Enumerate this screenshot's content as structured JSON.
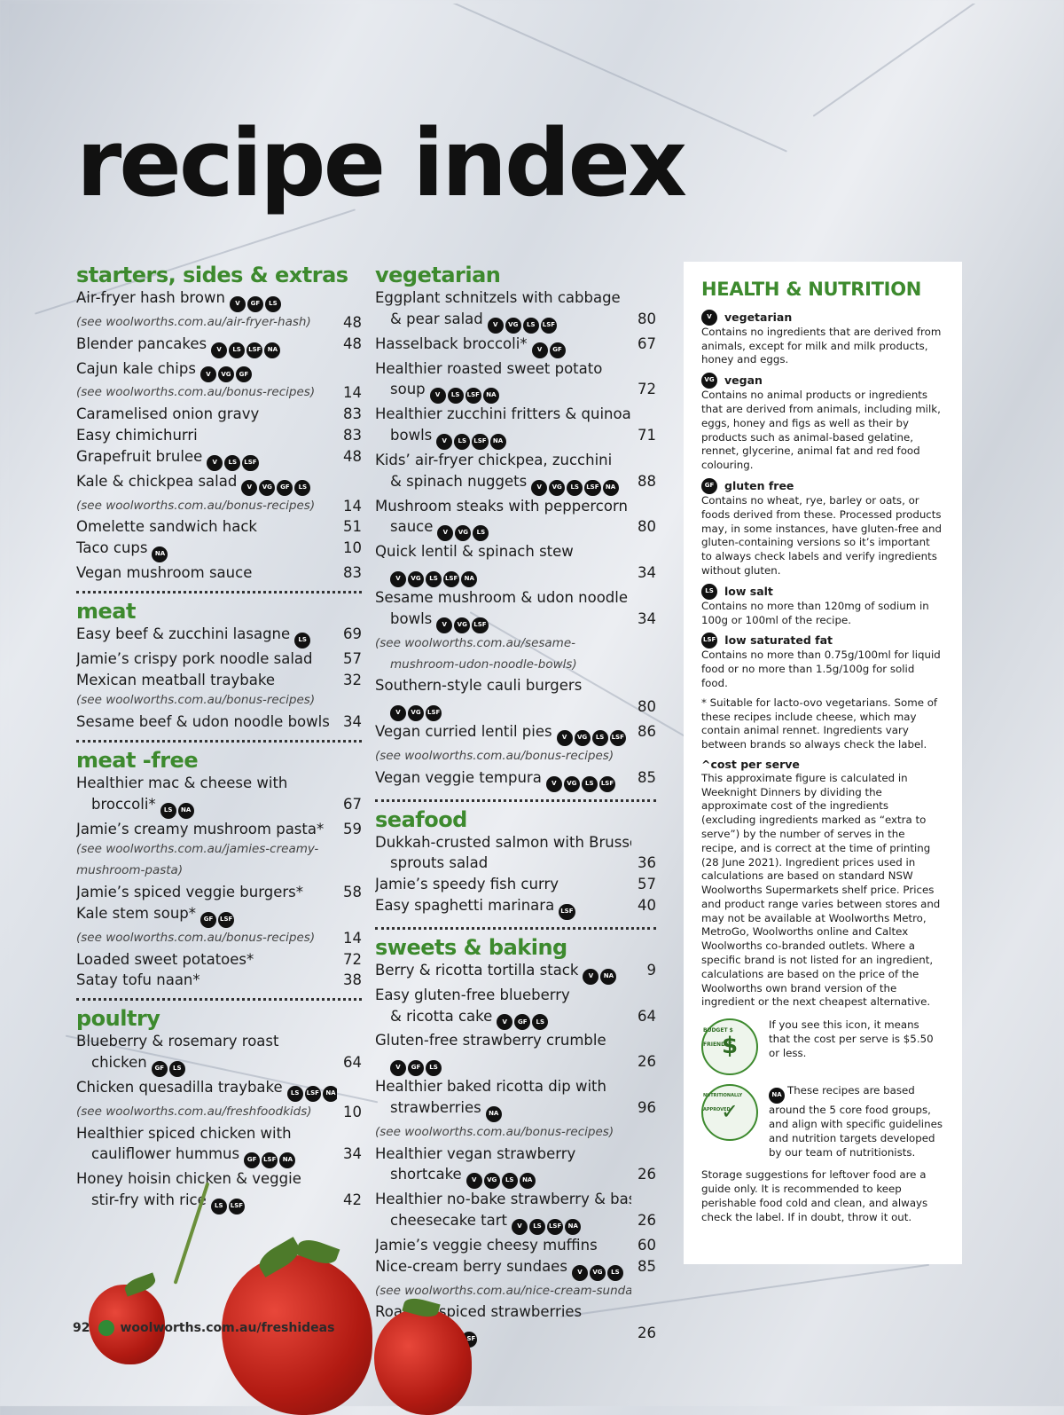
{
  "title": "recipe index",
  "col1": [
    {
      "t": "sec",
      "label": "starters, sides & extras"
    },
    {
      "t": "r",
      "name": "Air-fryer hash brown",
      "icons": [
        "V",
        "GF",
        "LS"
      ],
      "page": ""
    },
    {
      "t": "u",
      "url": "(see woolworths.com.au/air-fryer-hash)",
      "page": "48"
    },
    {
      "t": "r",
      "name": "Blender pancakes",
      "icons": [
        "V",
        "LS",
        "LSF",
        "NA"
      ],
      "page": "48"
    },
    {
      "t": "r",
      "name": "Cajun kale chips",
      "icons": [
        "V",
        "VG",
        "GF"
      ],
      "page": ""
    },
    {
      "t": "u",
      "url": "(see woolworths.com.au/bonus-recipes)",
      "page": "14"
    },
    {
      "t": "r",
      "name": "Caramelised onion gravy",
      "icons": [],
      "page": "83"
    },
    {
      "t": "r",
      "name": "Easy chimichurri",
      "icons": [],
      "page": "83"
    },
    {
      "t": "r",
      "name": "Grapefruit brulee",
      "icons": [
        "V",
        "LS",
        "LSF"
      ],
      "page": "48"
    },
    {
      "t": "r",
      "name": "Kale & chickpea salad",
      "icons": [
        "V",
        "VG",
        "GF",
        "LS"
      ],
      "page": ""
    },
    {
      "t": "u",
      "url": "(see woolworths.com.au/bonus-recipes)",
      "page": "14"
    },
    {
      "t": "r",
      "name": "Omelette sandwich hack",
      "icons": [],
      "page": "51"
    },
    {
      "t": "r",
      "name": "Taco cups",
      "icons": [
        "NA"
      ],
      "page": "10"
    },
    {
      "t": "r",
      "name": "Vegan mushroom sauce",
      "icons": [],
      "page": "83"
    },
    {
      "t": "d"
    },
    {
      "t": "sec",
      "label": "meat"
    },
    {
      "t": "r",
      "name": "Easy beef & zucchini lasagne",
      "icons": [
        "LS"
      ],
      "page": "69"
    },
    {
      "t": "r",
      "name": "Jamie’s crispy pork noodle salad",
      "icons": [],
      "page": "57"
    },
    {
      "t": "r",
      "name": "Mexican meatball traybake",
      "icons": [],
      "page": "32"
    },
    {
      "t": "u",
      "url": "(see woolworths.com.au/bonus-recipes)",
      "page": ""
    },
    {
      "t": "r",
      "name": "Sesame beef & udon noodle bowls",
      "icons": [],
      "page": "34"
    },
    {
      "t": "d"
    },
    {
      "t": "sec",
      "label": "meat -free"
    },
    {
      "t": "r",
      "name": "Healthier mac & cheese with",
      "icons": [],
      "page": ""
    },
    {
      "t": "r",
      "name": "broccoli*",
      "icons": [
        "LS",
        "NA"
      ],
      "page": "67",
      "ind": true
    },
    {
      "t": "r",
      "name": "Jamie’s creamy mushroom pasta*",
      "icons": [],
      "page": "59"
    },
    {
      "t": "u",
      "url": "(see woolworths.com.au/jamies-creamy-",
      "page": ""
    },
    {
      "t": "u",
      "url": "mushroom-pasta)",
      "page": ""
    },
    {
      "t": "r",
      "name": "Jamie’s spiced veggie burgers*",
      "icons": [],
      "page": "58"
    },
    {
      "t": "r",
      "name": "Kale stem soup*",
      "icons": [
        "GF",
        "LSF"
      ],
      "page": ""
    },
    {
      "t": "u",
      "url": "(see woolworths.com.au/bonus-recipes)",
      "page": "14"
    },
    {
      "t": "r",
      "name": "Loaded sweet potatoes*",
      "icons": [],
      "page": "72"
    },
    {
      "t": "r",
      "name": "Satay tofu naan*",
      "icons": [],
      "page": "38"
    },
    {
      "t": "d"
    },
    {
      "t": "sec",
      "label": "poultry"
    },
    {
      "t": "r",
      "name": "Blueberry & rosemary roast",
      "icons": [],
      "page": ""
    },
    {
      "t": "r",
      "name": "chicken",
      "icons": [
        "GF",
        "LS"
      ],
      "page": "64",
      "ind": true
    },
    {
      "t": "r",
      "name": "Chicken quesadilla traybake",
      "icons": [
        "LS",
        "LSF",
        "NA"
      ],
      "page": ""
    },
    {
      "t": "u",
      "url": "(see woolworths.com.au/freshfoodkids)",
      "page": "10"
    },
    {
      "t": "r",
      "name": "Healthier spiced chicken with",
      "icons": [],
      "page": ""
    },
    {
      "t": "r",
      "name": "cauliflower hummus",
      "icons": [
        "GF",
        "LSF",
        "NA"
      ],
      "page": "34",
      "ind": true
    },
    {
      "t": "r",
      "name": "Honey hoisin chicken & veggie",
      "icons": [],
      "page": ""
    },
    {
      "t": "r",
      "name": "stir-fry with rice",
      "icons": [
        "LS",
        "LSF"
      ],
      "page": "42",
      "ind": true
    }
  ],
  "col2": [
    {
      "t": "sec",
      "label": "vegetarian"
    },
    {
      "t": "r",
      "name": "Eggplant schnitzels with cabbage",
      "icons": [],
      "page": ""
    },
    {
      "t": "r",
      "name": "& pear salad",
      "icons": [
        "V",
        "VG",
        "LS",
        "LSF"
      ],
      "page": "80",
      "ind": true
    },
    {
      "t": "r",
      "name": "Hasselback broccoli*",
      "icons": [
        "V",
        "GF"
      ],
      "page": "67"
    },
    {
      "t": "r",
      "name": "Healthier roasted sweet potato",
      "icons": [],
      "page": ""
    },
    {
      "t": "r",
      "name": "soup",
      "icons": [
        "V",
        "LS",
        "LSF",
        "NA"
      ],
      "page": "72",
      "ind": true
    },
    {
      "t": "r",
      "name": "Healthier zucchini fritters & quinoa",
      "icons": [],
      "page": ""
    },
    {
      "t": "r",
      "name": "bowls",
      "icons": [
        "V",
        "LS",
        "LSF",
        "NA"
      ],
      "page": "71",
      "ind": true
    },
    {
      "t": "r",
      "name": "Kids’ air-fryer chickpea, zucchini",
      "icons": [],
      "page": ""
    },
    {
      "t": "r",
      "name": "& spinach nuggets",
      "icons": [
        "V",
        "VG",
        "LS",
        "LSF",
        "NA"
      ],
      "page": "88",
      "ind": true
    },
    {
      "t": "r",
      "name": "Mushroom steaks with peppercorn",
      "icons": [],
      "page": ""
    },
    {
      "t": "r",
      "name": "sauce",
      "icons": [
        "V",
        "VG",
        "LS"
      ],
      "page": "80",
      "ind": true
    },
    {
      "t": "r",
      "name": "Quick lentil & spinach stew",
      "icons": [],
      "page": ""
    },
    {
      "t": "r",
      "name": "",
      "icons": [
        "V",
        "VG",
        "LS",
        "LSF",
        "NA"
      ],
      "page": "34",
      "ind": true
    },
    {
      "t": "r",
      "name": "Sesame mushroom & udon noodle",
      "icons": [],
      "page": ""
    },
    {
      "t": "r",
      "name": "bowls",
      "icons": [
        "V",
        "VG",
        "LSF"
      ],
      "page": "34",
      "ind": true
    },
    {
      "t": "u",
      "url": "(see woolworths.com.au/sesame-",
      "page": ""
    },
    {
      "t": "u",
      "url": "mushroom-udon-noodle-bowls)",
      "page": "",
      "ind": true
    },
    {
      "t": "r",
      "name": "Southern-style cauli burgers",
      "icons": [],
      "page": ""
    },
    {
      "t": "r",
      "name": "",
      "icons": [
        "V",
        "VG",
        "LSF"
      ],
      "page": "80",
      "ind": true
    },
    {
      "t": "r",
      "name": "Vegan curried lentil pies",
      "icons": [
        "V",
        "VG",
        "LS",
        "LSF"
      ],
      "page": "86"
    },
    {
      "t": "u",
      "url": "(see woolworths.com.au/bonus-recipes)",
      "page": ""
    },
    {
      "t": "r",
      "name": "Vegan veggie tempura",
      "icons": [
        "V",
        "VG",
        "LS",
        "LSF"
      ],
      "page": "85"
    },
    {
      "t": "d"
    },
    {
      "t": "sec",
      "label": "seafood"
    },
    {
      "t": "r",
      "name": "Dukkah-crusted salmon with Brussels",
      "icons": [],
      "page": ""
    },
    {
      "t": "r",
      "name": "sprouts salad",
      "icons": [],
      "page": "36",
      "ind": true
    },
    {
      "t": "r",
      "name": "Jamie’s speedy fish curry",
      "icons": [],
      "page": "57"
    },
    {
      "t": "r",
      "name": "Easy spaghetti marinara",
      "icons": [
        "LSF"
      ],
      "page": "40"
    },
    {
      "t": "d"
    },
    {
      "t": "sec",
      "label": "sweets & baking"
    },
    {
      "t": "r",
      "name": "Berry & ricotta tortilla stack",
      "icons": [
        "V",
        "NA"
      ],
      "page": "9"
    },
    {
      "t": "r",
      "name": "Easy gluten-free blueberry",
      "icons": [],
      "page": ""
    },
    {
      "t": "r",
      "name": "& ricotta cake",
      "icons": [
        "V",
        "GF",
        "LS"
      ],
      "page": "64",
      "ind": true
    },
    {
      "t": "r",
      "name": "Gluten-free strawberry crumble",
      "icons": [],
      "page": ""
    },
    {
      "t": "r",
      "name": "",
      "icons": [
        "V",
        "GF",
        "LS"
      ],
      "page": "26",
      "ind": true
    },
    {
      "t": "r",
      "name": "Healthier baked ricotta dip with",
      "icons": [],
      "page": ""
    },
    {
      "t": "r",
      "name": "strawberries",
      "icons": [
        "NA"
      ],
      "page": "96",
      "ind": true
    },
    {
      "t": "u",
      "url": "(see woolworths.com.au/bonus-recipes)",
      "page": ""
    },
    {
      "t": "r",
      "name": "Healthier vegan strawberry",
      "icons": [],
      "page": ""
    },
    {
      "t": "r",
      "name": "shortcake",
      "icons": [
        "V",
        "VG",
        "LS",
        "NA"
      ],
      "page": "26",
      "ind": true
    },
    {
      "t": "r",
      "name": "Healthier no-bake strawberry & basil",
      "icons": [],
      "page": ""
    },
    {
      "t": "r",
      "name": "cheesecake tart",
      "icons": [
        "V",
        "LS",
        "LSF",
        "NA"
      ],
      "page": "26",
      "ind": true
    },
    {
      "t": "r",
      "name": "Jamie’s veggie cheesy muffins",
      "icons": [],
      "page": "60"
    },
    {
      "t": "r",
      "name": "Nice-cream berry sundaes",
      "icons": [
        "V",
        "VG",
        "LS"
      ],
      "page": "85"
    },
    {
      "t": "u",
      "url": "(see woolworths.com.au/nice-cream-sundaes)",
      "page": ""
    },
    {
      "t": "r",
      "name": "Roasted spiced strawberries",
      "icons": [],
      "page": ""
    },
    {
      "t": "r",
      "name": "",
      "icons": [
        "V",
        "VG",
        "GF",
        "LS",
        "LSF"
      ],
      "page": "26",
      "ind": true
    }
  ],
  "panel": {
    "heading": "HEALTH & NUTRITION",
    "defs": [
      {
        "icon": "V",
        "title": "vegetarian",
        "text": "Contains no ingredients that are derived from animals, except for milk and milk products, honey and eggs."
      },
      {
        "icon": "VG",
        "title": "vegan",
        "text": "Contains no animal products or ingredients that are derived from animals, including milk, eggs, honey and figs as well as their by products such as animal-based gelatine, rennet, glycerine, animal fat and red food colouring."
      },
      {
        "icon": "GF",
        "title": "gluten free",
        "text": "Contains no wheat, rye, barley or oats, or foods derived from these. Processed products may, in some instances, have gluten-free and gluten-containing versions so it’s important to always check labels and verify ingredients without gluten."
      },
      {
        "icon": "LS",
        "title": "low salt",
        "text": "Contains no more than 120mg of sodium in 100g or 100ml of the recipe."
      },
      {
        "icon": "LSF",
        "title": "low saturated fat",
        "text": "Contains no more than 0.75g/100ml for liquid food or no more than 1.5g/100g for solid food."
      }
    ],
    "lacto": "* Suitable for lacto-ovo vegetarians. Some of these recipes include cheese, which may contain animal rennet. Ingredients vary between brands so always check the label.",
    "cost_title": "^cost per serve",
    "cost_text": "This approximate figure is calculated in Weeknight Dinners by dividing the approximate cost of the ingredients (excluding ingredients marked as “extra to serve”) by the number of serves in the recipe, and is correct at the time of printing (28 June 2021). Ingredient prices used in calculations are based on standard NSW Woolworths Supermarkets shelf price. Prices and product range varies between stores and may not be available at Woolworths Metro, MetroGo, Woolworths online and Caltex Woolworths co-branded outlets. Where a specific brand is not listed for an ingredient, calculations are based on the price of the Woolworths own brand version of the ingredient or the next cheapest alternative.",
    "budget_badge": "BUDGET $ FRIENDLY",
    "budget_text": "If you see this icon, it means that the cost per serve is $5.50 or less.",
    "na_badge": "NUTRITIONALLY APPROVED",
    "na_icon": "NA",
    "na_text": "These recipes are based around the 5 core food groups, and align with specific guidelines and nutrition targets developed by our team of nutritionists.",
    "storage": "Storage suggestions for leftover food are a guide only. It is recommended to keep perishable food cold and clean, and always check the label. If in doubt, throw it out."
  },
  "footer": {
    "page": "92",
    "url": "woolworths.com.au/freshideas"
  }
}
